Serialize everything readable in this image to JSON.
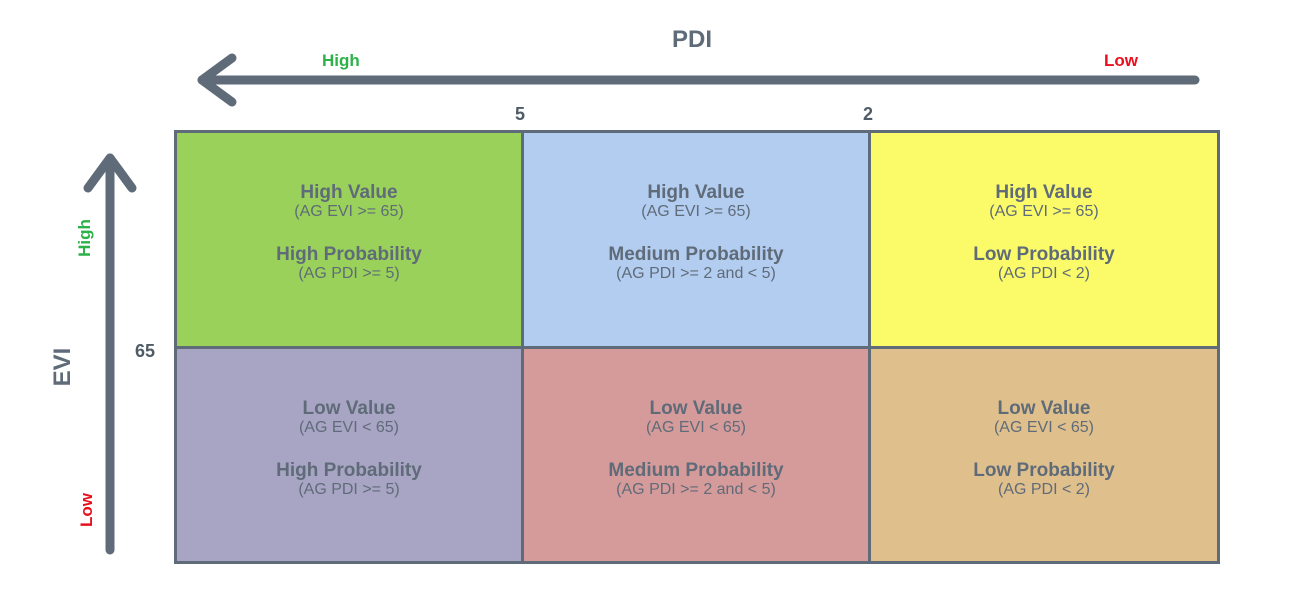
{
  "x_axis": {
    "title": "PDI",
    "high_label": "High",
    "low_label": "Low",
    "ticks": [
      "5",
      "2"
    ]
  },
  "y_axis": {
    "title": "EVI",
    "high_label": "High",
    "low_label": "Low",
    "ticks": [
      "65"
    ]
  },
  "colors": {
    "axis": "#5f6b78",
    "high_label": "#2db24a",
    "low_label": "#e8101e"
  },
  "cells": [
    {
      "value": "High Value",
      "value_rule": "(AG EVI >= 65)",
      "prob": "High Probability",
      "prob_rule": "(AG PDI >= 5)",
      "color": "#9ad15a"
    },
    {
      "value": "High Value",
      "value_rule": "(AG EVI >= 65)",
      "prob": "Medium Probability",
      "prob_rule": "(AG PDI >= 2 and < 5)",
      "color": "#b3cdf0"
    },
    {
      "value": "High Value",
      "value_rule": "(AG EVI >= 65)",
      "prob": "Low Probability",
      "prob_rule": "(AG PDI < 2)",
      "color": "#fbfb6a"
    },
    {
      "value": "Low Value",
      "value_rule": "(AG EVI < 65)",
      "prob": "High Probability",
      "prob_rule": "(AG PDI >= 5)",
      "color": "#a8a4c4"
    },
    {
      "value": "Low Value",
      "value_rule": "(AG EVI < 65)",
      "prob": "Medium Probability",
      "prob_rule": "(AG PDI >= 2 and < 5)",
      "color": "#d59b9b"
    },
    {
      "value": "Low Value",
      "value_rule": "(AG EVI < 65)",
      "prob": "Low Probability",
      "prob_rule": "(AG PDI < 2)",
      "color": "#dfc08c"
    }
  ]
}
